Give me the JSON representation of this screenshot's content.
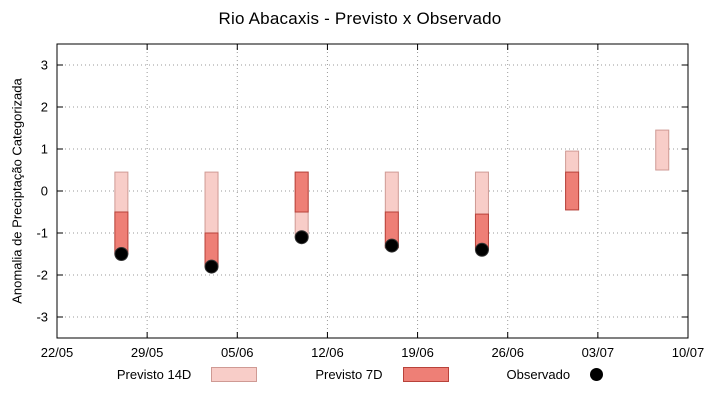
{
  "chart_data": {
    "type": "bar",
    "title": "Rio Abacaxis - Previsto x Observado",
    "ylabel": "Anomalia de Preciptação Categorizada",
    "xlabel": "",
    "grid": true,
    "legend_position": "bottom",
    "x_tick_labels": [
      "22/05",
      "29/05",
      "05/06",
      "12/06",
      "19/06",
      "26/06",
      "03/07",
      "10/07"
    ],
    "x_tick_days": [
      0,
      7,
      14,
      21,
      28,
      35,
      42,
      49
    ],
    "x_range": [
      0,
      49
    ],
    "y_ticks": [
      -3,
      -2,
      -1,
      0,
      1,
      2,
      3
    ],
    "y_range": [
      -3.5,
      3.5
    ],
    "series": [
      {
        "name": "Previsto 14D",
        "type": "range-bar",
        "fill": "#f8cdc8",
        "stroke": "#cf9a94",
        "bars": [
          {
            "day": 5,
            "low": -1.5,
            "high": 0.45
          },
          {
            "day": 12,
            "low": -1.8,
            "high": 0.45
          },
          {
            "day": 19,
            "low": -1.1,
            "high": 0.45
          },
          {
            "day": 26,
            "low": -1.35,
            "high": 0.45
          },
          {
            "day": 33,
            "low": -1.4,
            "high": 0.45
          },
          {
            "day": 40,
            "low": -0.45,
            "high": 0.95
          },
          {
            "day": 47,
            "low": 0.5,
            "high": 1.45
          }
        ]
      },
      {
        "name": "Previsto 7D",
        "type": "range-bar",
        "fill": "#ee7f76",
        "stroke": "#b8423a",
        "bars": [
          {
            "day": 5,
            "low": -1.5,
            "high": -0.5
          },
          {
            "day": 12,
            "low": -1.8,
            "high": -1.0
          },
          {
            "day": 19,
            "low": -0.5,
            "high": 0.45
          },
          {
            "day": 26,
            "low": -1.35,
            "high": -0.5
          },
          {
            "day": 33,
            "low": -1.4,
            "high": -0.55
          },
          {
            "day": 40,
            "low": -0.45,
            "high": 0.45
          }
        ]
      },
      {
        "name": "Observado",
        "type": "scatter",
        "color": "#000000",
        "points": [
          {
            "day": 5,
            "value": -1.5
          },
          {
            "day": 12,
            "value": -1.8
          },
          {
            "day": 19,
            "value": -1.1
          },
          {
            "day": 26,
            "value": -1.3
          },
          {
            "day": 33,
            "value": -1.4
          }
        ]
      }
    ]
  }
}
